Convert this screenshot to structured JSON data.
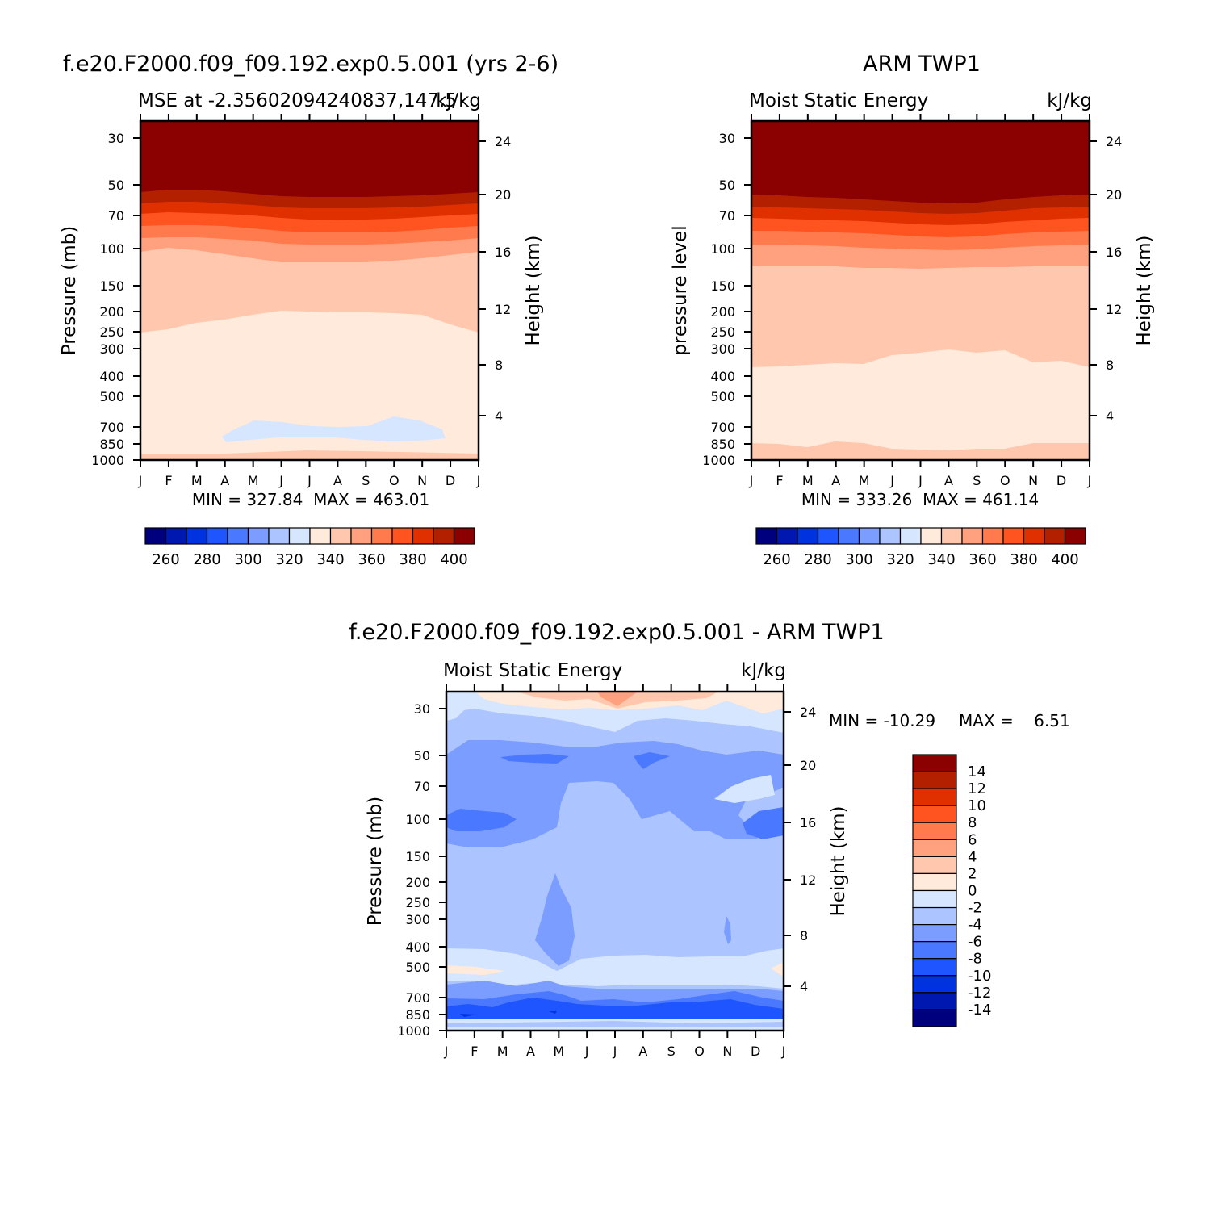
{
  "colors": {
    "mse": [
      "#00007f",
      "#0017b0",
      "#0033e0",
      "#1e55ff",
      "#4a78ff",
      "#7b9dff",
      "#acc4ff",
      "#d6e6ff",
      "#ffeadc",
      "#ffc8ae",
      "#ffa17f",
      "#ff7b4e",
      "#ff5420",
      "#e03000",
      "#b32000",
      "#8b0000"
    ],
    "diff": [
      "#00007f",
      "#0017b0",
      "#0033e0",
      "#1e55ff",
      "#4a78ff",
      "#7b9dff",
      "#acc4ff",
      "#d6e6ff",
      "#ffeadc",
      "#ffc8ae",
      "#ffa17f",
      "#ff7b4e",
      "#ff5420",
      "#e03000",
      "#b32000",
      "#8b0000"
    ]
  },
  "chart_data": [
    {
      "type": "heatmap",
      "id": "model",
      "title": "f.e20.F2000.f09_f09.192.exp0.5.001 (yrs 2-6)",
      "left_label": "MSE at -2.35602094240837,147.5",
      "right_label": "kJ/kg",
      "ylabel": "Pressure (mb)",
      "y2label": "Height (km)",
      "x_ticks": [
        "J",
        "F",
        "M",
        "A",
        "M",
        "J",
        "J",
        "A",
        "S",
        "O",
        "N",
        "D",
        "J"
      ],
      "y_ticks": [
        "30",
        "50",
        "70",
        "100",
        "150",
        "200",
        "250",
        "300",
        "400",
        "500",
        "700",
        "850",
        "1000"
      ],
      "y2_ticks": [
        "24",
        "20",
        "16",
        "12",
        "8",
        "4"
      ],
      "stats": "MIN = 327.84  MAX = 463.01",
      "colorbar_labels": [
        "260",
        "280",
        "300",
        "320",
        "340",
        "360",
        "380",
        "400"
      ],
      "bands": [
        {
          "level": "<330",
          "color_index": 7
        },
        {
          "level": "330-340",
          "color_index": 8
        },
        {
          "level": "340-350",
          "color_index": 9
        },
        {
          "level": "350-360",
          "color_index": 10
        },
        {
          "level": "360-370",
          "color_index": 11
        },
        {
          "level": "370-380",
          "color_index": 12
        },
        {
          "level": "380-390",
          "color_index": 13
        },
        {
          "level": "390-400",
          "color_index": 14
        },
        {
          "level": ">400",
          "color_index": 15
        }
      ]
    },
    {
      "type": "heatmap",
      "id": "obs",
      "title": "ARM TWP1",
      "left_label": "Moist Static Energy",
      "right_label": "kJ/kg",
      "ylabel": "pressure level",
      "y2label": "Height (km)",
      "x_ticks": [
        "J",
        "F",
        "M",
        "A",
        "M",
        "J",
        "J",
        "A",
        "S",
        "O",
        "N",
        "D",
        "J"
      ],
      "y_ticks": [
        "30",
        "50",
        "70",
        "100",
        "150",
        "200",
        "250",
        "300",
        "400",
        "500",
        "700",
        "850",
        "1000"
      ],
      "y2_ticks": [
        "24",
        "20",
        "16",
        "12",
        "8",
        "4"
      ],
      "stats": "MIN = 333.26  MAX = 461.14",
      "colorbar_labels": [
        "260",
        "280",
        "300",
        "320",
        "340",
        "360",
        "380",
        "400"
      ]
    },
    {
      "type": "heatmap",
      "id": "diff",
      "title": "f.e20.F2000.f09_f09.192.exp0.5.001 - ARM TWP1",
      "left_label": "Moist Static Energy",
      "right_label": "kJ/kg",
      "ylabel": "Pressure (mb)",
      "y2label": "Height (km)",
      "x_ticks": [
        "J",
        "F",
        "M",
        "A",
        "M",
        "J",
        "J",
        "A",
        "S",
        "O",
        "N",
        "D",
        "J"
      ],
      "y_ticks": [
        "30",
        "50",
        "70",
        "100",
        "150",
        "200",
        "250",
        "300",
        "400",
        "500",
        "700",
        "850",
        "1000"
      ],
      "y2_ticks": [
        "24",
        "20",
        "16",
        "12",
        "8",
        "4"
      ],
      "stats_min": "MIN = -10.29",
      "stats_max": "MAX =    6.51",
      "colorbar_labels": [
        "14",
        "12",
        "10",
        "8",
        "6",
        "4",
        "2",
        "0",
        "-2",
        "-4",
        "-6",
        "-8",
        "-10",
        "-12",
        "-14"
      ]
    }
  ]
}
